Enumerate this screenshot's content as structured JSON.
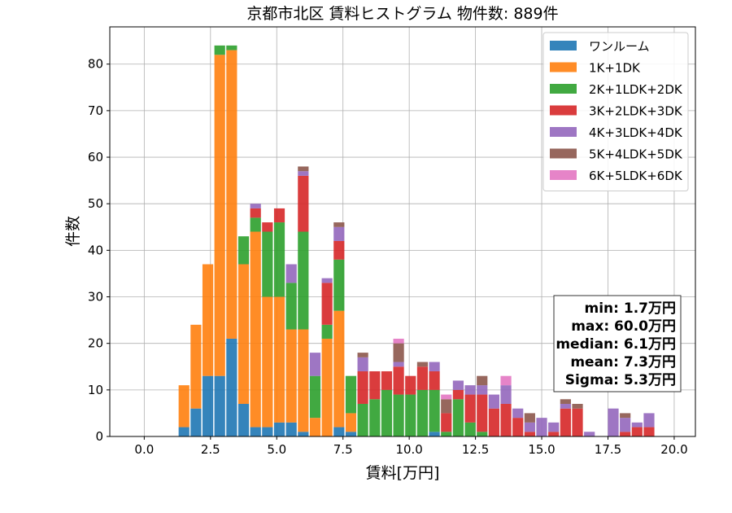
{
  "chart_data": {
    "type": "bar",
    "stacked": true,
    "title": "京都市北区 賃料ヒストグラム  物件数: 889件",
    "xlabel": "賃料[万円]",
    "ylabel": "件数",
    "xlim": [
      -1.3,
      20.8
    ],
    "ylim": [
      0,
      88
    ],
    "xticks": [
      0.0,
      2.5,
      5.0,
      7.5,
      10.0,
      12.5,
      15.0,
      17.5,
      20.0
    ],
    "xtick_labels": [
      "0.0",
      "2.5",
      "5.0",
      "7.5",
      "10.0",
      "12.5",
      "15.0",
      "17.5",
      "20.0"
    ],
    "yticks": [
      0,
      10,
      20,
      30,
      40,
      50,
      60,
      70,
      80
    ],
    "ytick_labels": [
      "0",
      "10",
      "20",
      "30",
      "40",
      "50",
      "60",
      "70",
      "80"
    ],
    "grid": true,
    "legend_position": "top-right",
    "bin_width": 0.45,
    "x": [
      1.5,
      1.95,
      2.4,
      2.85,
      3.3,
      3.75,
      4.2,
      4.65,
      5.1,
      5.55,
      6.0,
      6.45,
      6.9,
      7.35,
      7.8,
      8.25,
      8.7,
      9.15,
      9.6,
      10.05,
      10.5,
      10.95,
      11.4,
      11.85,
      12.3,
      12.75,
      13.2,
      13.65,
      14.1,
      14.55,
      15.0,
      15.45,
      15.9,
      16.35,
      16.8,
      17.25,
      17.7,
      18.15,
      18.6,
      19.05,
      19.5
    ],
    "series": [
      {
        "name": "ワンルーム",
        "color": "#1f77b4",
        "values": [
          2,
          6,
          13,
          13,
          21,
          7,
          2,
          2,
          3,
          3,
          1,
          0,
          0,
          2,
          1,
          0,
          0,
          0,
          0,
          0,
          0,
          1,
          0,
          0,
          0,
          0,
          0,
          0,
          0,
          0,
          0,
          0,
          0,
          0,
          0,
          0,
          0,
          0,
          0,
          0,
          0
        ]
      },
      {
        "name": "1K+1DK",
        "color": "#ff7f0e",
        "values": [
          9,
          18,
          24,
          69,
          62,
          30,
          42,
          28,
          27,
          20,
          22,
          4,
          21,
          25,
          4,
          0,
          0,
          0,
          0,
          0,
          0,
          0,
          0,
          0,
          0,
          0,
          0,
          0,
          0,
          0,
          0,
          0,
          0,
          0,
          0,
          0,
          0,
          0,
          0,
          0,
          0
        ]
      },
      {
        "name": "2K+1LDK+2DK",
        "color": "#2ca02c",
        "values": [
          0,
          0,
          0,
          2,
          1,
          6,
          3,
          14,
          16,
          10,
          21,
          9,
          3,
          11,
          8,
          7,
          8,
          10,
          9,
          9,
          10,
          9,
          1,
          8,
          3,
          1,
          0,
          0,
          0,
          0,
          0,
          0,
          0,
          0,
          0,
          0,
          0,
          0,
          0,
          0,
          0
        ]
      },
      {
        "name": "3K+2LDK+3DK",
        "color": "#d62728",
        "values": [
          0,
          0,
          0,
          0,
          0,
          0,
          2,
          2,
          3,
          0,
          12,
          0,
          9,
          4,
          0,
          7,
          6,
          4,
          6,
          4,
          5,
          4,
          4,
          2,
          6,
          8,
          6,
          7,
          4,
          1,
          0,
          1,
          6,
          6,
          0,
          0,
          0,
          1,
          2,
          2,
          0
        ]
      },
      {
        "name": "4K+3LDK+4DK",
        "color": "#9467bd",
        "values": [
          0,
          0,
          0,
          0,
          0,
          0,
          1,
          0,
          0,
          4,
          1,
          5,
          1,
          3,
          0,
          3,
          0,
          0,
          1,
          0,
          0,
          2,
          0,
          2,
          2,
          2,
          3,
          4,
          2,
          2,
          4,
          2,
          1,
          0,
          1,
          0,
          6,
          3,
          1,
          3,
          0
        ]
      },
      {
        "name": "5K+4LDK+5DK",
        "color": "#8c564b",
        "values": [
          0,
          0,
          0,
          0,
          0,
          0,
          0,
          0,
          0,
          0,
          1,
          0,
          0,
          1,
          0,
          1,
          0,
          0,
          4,
          0,
          1,
          0,
          3,
          0,
          0,
          2,
          0,
          0,
          0,
          2,
          0,
          0,
          1,
          1,
          0,
          0,
          0,
          1,
          0,
          0,
          0
        ]
      },
      {
        "name": "6K+5LDK+6DK",
        "color": "#e377c2",
        "values": [
          0,
          0,
          0,
          0,
          0,
          0,
          0,
          0,
          0,
          0,
          0,
          0,
          0,
          0,
          0,
          0,
          0,
          0,
          1,
          0,
          0,
          0,
          1,
          0,
          0,
          0,
          0,
          2,
          0,
          0,
          0,
          0,
          0,
          0,
          0,
          0,
          0,
          0,
          0,
          0,
          0
        ]
      }
    ],
    "stats_box": {
      "position": "right",
      "lines": [
        "min: 1.7万円",
        "max: 60.0万円",
        "median: 6.1万円",
        "mean: 7.3万円",
        "Sigma: 5.3万円"
      ]
    }
  }
}
